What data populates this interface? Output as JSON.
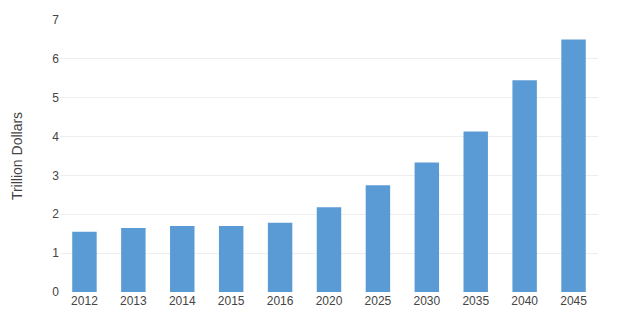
{
  "chart_data": {
    "type": "bar",
    "categories": [
      "2012",
      "2013",
      "2014",
      "2015",
      "2016",
      "2020",
      "2025",
      "2030",
      "2035",
      "2040",
      "2045"
    ],
    "values": [
      1.55,
      1.65,
      1.7,
      1.7,
      1.78,
      2.18,
      2.75,
      3.33,
      4.13,
      5.45,
      6.5
    ],
    "color": "#5b9bd5",
    "ylabel": "Trillion Dollars",
    "ylim": [
      0,
      7
    ],
    "yticks": [
      0,
      1,
      2,
      3,
      4,
      5,
      6,
      7
    ],
    "grid": true
  }
}
